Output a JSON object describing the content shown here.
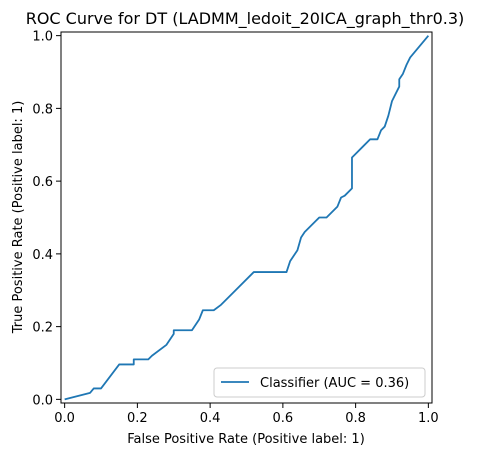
{
  "chart_data": {
    "type": "line",
    "title": "ROC Curve for DT (LADMM_ledoit_20ICA_graph_thr0.3)",
    "xlabel": "False Positive Rate (Positive label: 1)",
    "ylabel": "True Positive Rate (Positive label: 1)",
    "xlim": [
      -0.01,
      1.01
    ],
    "ylim": [
      -0.01,
      1.01
    ],
    "xticks": [
      "0.0",
      "0.2",
      "0.4",
      "0.6",
      "0.8",
      "1.0"
    ],
    "yticks": [
      "0.0",
      "0.2",
      "0.4",
      "0.6",
      "0.8",
      "1.0"
    ],
    "grid": false,
    "legend_position": "lower-right",
    "series": [
      {
        "name": "Classifier (AUC = 0.36)",
        "color": "#1f77b4",
        "x": [
          0.0,
          0.07,
          0.08,
          0.1,
          0.15,
          0.19,
          0.19,
          0.23,
          0.24,
          0.28,
          0.3,
          0.3,
          0.35,
          0.37,
          0.38,
          0.41,
          0.43,
          0.47,
          0.52,
          0.53,
          0.56,
          0.61,
          0.62,
          0.64,
          0.65,
          0.66,
          0.7,
          0.72,
          0.75,
          0.76,
          0.77,
          0.79,
          0.79,
          0.8,
          0.82,
          0.84,
          0.85,
          0.86,
          0.87,
          0.88,
          0.89,
          0.9,
          0.91,
          0.92,
          0.92,
          0.93,
          0.94,
          0.95,
          1.0
        ],
        "y": [
          0.0,
          0.018,
          0.03,
          0.03,
          0.096,
          0.096,
          0.11,
          0.11,
          0.12,
          0.15,
          0.18,
          0.19,
          0.19,
          0.22,
          0.245,
          0.245,
          0.26,
          0.3,
          0.35,
          0.35,
          0.35,
          0.35,
          0.38,
          0.41,
          0.445,
          0.46,
          0.5,
          0.5,
          0.53,
          0.555,
          0.56,
          0.58,
          0.665,
          0.675,
          0.695,
          0.715,
          0.715,
          0.715,
          0.74,
          0.75,
          0.78,
          0.82,
          0.84,
          0.86,
          0.88,
          0.895,
          0.92,
          0.94,
          1.0
        ]
      }
    ]
  }
}
